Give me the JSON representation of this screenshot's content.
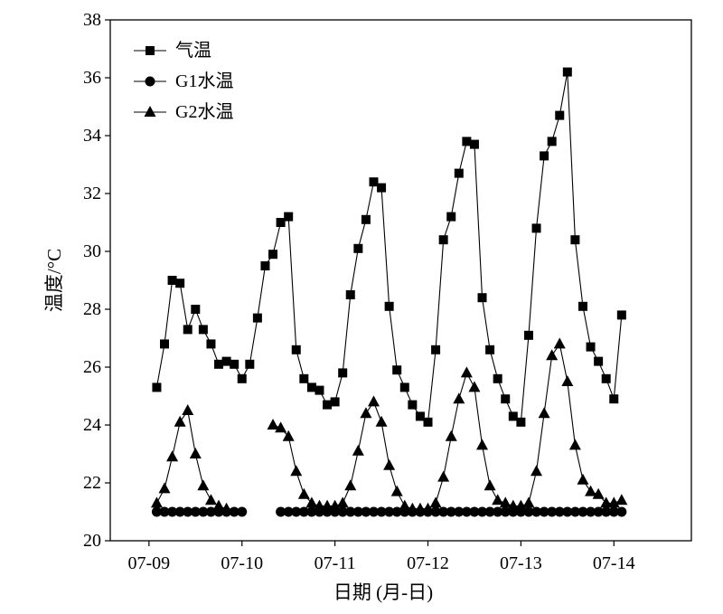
{
  "chart_data": {
    "type": "line",
    "xlabel": "日期 (月-日)",
    "ylabel": "温度/°C",
    "xlim": [
      "07-08 14:00",
      "07-14 20:00"
    ],
    "ylim": [
      20,
      38
    ],
    "xticks": [
      "07-09",
      "07-10",
      "07-11",
      "07-12",
      "07-13",
      "07-14"
    ],
    "yticks": [
      20,
      22,
      24,
      26,
      28,
      30,
      32,
      34,
      36,
      38
    ],
    "grid": false,
    "legend": "top-left",
    "x": [
      "07-09 02:00",
      "07-09 04:00",
      "07-09 06:00",
      "07-09 08:00",
      "07-09 10:00",
      "07-09 12:00",
      "07-09 14:00",
      "07-09 16:00",
      "07-09 18:00",
      "07-09 20:00",
      "07-09 22:00",
      "07-10 00:00",
      "07-10 02:00",
      "07-10 04:00",
      "07-10 06:00",
      "07-10 08:00",
      "07-10 10:00",
      "07-10 12:00",
      "07-10 14:00",
      "07-10 16:00",
      "07-10 18:00",
      "07-10 20:00",
      "07-10 22:00",
      "07-11 00:00",
      "07-11 02:00",
      "07-11 04:00",
      "07-11 06:00",
      "07-11 08:00",
      "07-11 10:00",
      "07-11 12:00",
      "07-11 14:00",
      "07-11 16:00",
      "07-11 18:00",
      "07-11 20:00",
      "07-11 22:00",
      "07-12 00:00",
      "07-12 02:00",
      "07-12 04:00",
      "07-12 06:00",
      "07-12 08:00",
      "07-12 10:00",
      "07-12 12:00",
      "07-12 14:00",
      "07-12 16:00",
      "07-12 18:00",
      "07-12 20:00",
      "07-12 22:00",
      "07-13 00:00",
      "07-13 02:00",
      "07-13 04:00",
      "07-13 06:00",
      "07-13 08:00",
      "07-13 10:00",
      "07-13 12:00",
      "07-13 14:00",
      "07-13 16:00",
      "07-13 18:00",
      "07-13 20:00",
      "07-13 22:00",
      "07-14 00:00",
      "07-14 02:00"
    ],
    "series": [
      {
        "name": "气温",
        "marker": "square",
        "values": [
          25.3,
          26.8,
          29.0,
          28.9,
          27.3,
          28.0,
          27.3,
          26.8,
          26.1,
          26.2,
          26.1,
          25.6,
          26.1,
          27.7,
          29.5,
          29.9,
          31.0,
          31.2,
          26.6,
          25.6,
          25.3,
          25.2,
          24.7,
          24.8,
          25.8,
          28.5,
          30.1,
          31.1,
          32.4,
          32.2,
          28.1,
          25.9,
          25.3,
          24.7,
          24.3,
          24.1,
          26.6,
          30.4,
          31.2,
          32.7,
          33.8,
          33.7,
          28.4,
          26.6,
          25.6,
          24.9,
          24.3,
          24.1,
          27.1,
          30.8,
          33.3,
          33.8,
          34.7,
          36.2,
          30.4,
          28.1,
          26.7,
          26.2,
          25.6,
          24.9,
          27.8
        ]
      },
      {
        "name": "G1水温",
        "marker": "circle",
        "values": [
          21.0,
          21.0,
          21.0,
          21.0,
          21.0,
          21.0,
          21.0,
          21.0,
          21.0,
          21.0,
          21.0,
          21.0,
          null,
          null,
          null,
          null,
          21.0,
          21.0,
          21.0,
          21.0,
          21.0,
          21.0,
          21.0,
          21.0,
          21.0,
          21.0,
          21.0,
          21.0,
          21.0,
          21.0,
          21.0,
          21.0,
          21.0,
          21.0,
          21.0,
          21.0,
          21.0,
          21.0,
          21.0,
          21.0,
          21.0,
          21.0,
          21.0,
          21.0,
          21.0,
          21.0,
          21.0,
          21.0,
          21.0,
          21.0,
          21.0,
          21.0,
          21.0,
          21.0,
          21.0,
          21.0,
          21.0,
          21.0,
          21.0,
          21.0,
          21.0
        ]
      },
      {
        "name": "G2水温",
        "marker": "triangle",
        "values": [
          21.3,
          21.8,
          22.9,
          24.1,
          24.5,
          23.0,
          21.9,
          21.4,
          21.2,
          21.1,
          null,
          null,
          null,
          null,
          null,
          24.0,
          23.9,
          23.6,
          22.4,
          21.6,
          21.3,
          21.2,
          21.2,
          21.2,
          21.3,
          21.9,
          23.1,
          24.4,
          24.8,
          24.1,
          22.6,
          21.7,
          21.2,
          21.1,
          21.1,
          21.1,
          21.3,
          22.2,
          23.6,
          24.9,
          25.8,
          25.3,
          23.3,
          21.9,
          21.4,
          21.3,
          21.2,
          21.2,
          21.3,
          22.4,
          24.4,
          26.4,
          26.8,
          25.5,
          23.3,
          22.1,
          21.7,
          21.6,
          21.3,
          21.3,
          21.4
        ]
      }
    ]
  }
}
